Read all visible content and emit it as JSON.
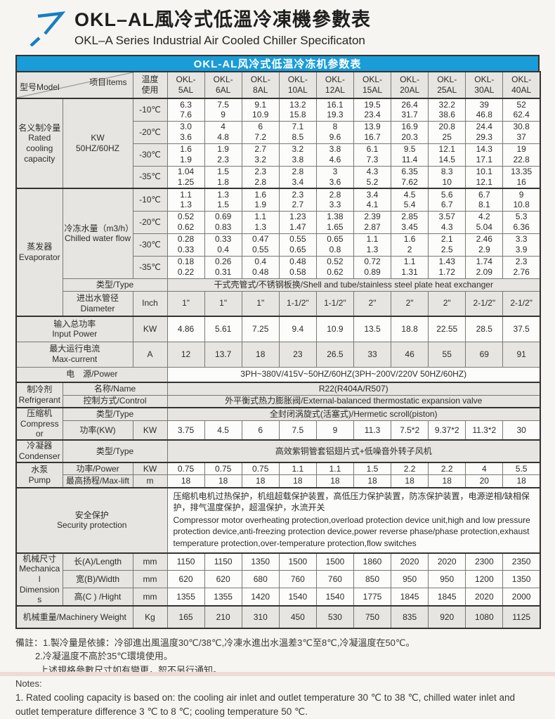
{
  "page": {
    "title_zh": "OKL–AL風冷式低溫冷凍機參數表",
    "title_en": "OKL–A Series Industrial Air Cooled Chiller Specificaton",
    "banner": "OKL-AL风冷式低温冷冻机参数表",
    "accent_blue": "#199cd8"
  },
  "table": {
    "corner": {
      "model": "型号Model",
      "items": "项目Items"
    },
    "temp_header": [
      "温度",
      "使用"
    ],
    "models": [
      "OKL-5AL",
      "OKL-6AL",
      "OKL-8AL",
      "OKL-10AL",
      "OKL-12AL",
      "OKL-15AL",
      "OKL-20AL",
      "OKL-25AL",
      "OKL-30AL",
      "OKL-40AL"
    ],
    "cooling_capacity": {
      "label": [
        "名义制冷量",
        "Rated",
        "cooling",
        "capacity"
      ],
      "unit": [
        "KW",
        "50HZ/60HZ"
      ],
      "rows": [
        {
          "temp": "-10℃",
          "values": [
            [
              "6.3",
              "7.6"
            ],
            [
              "7.5",
              "9"
            ],
            [
              "9.1",
              "10.9"
            ],
            [
              "13.2",
              "15.8"
            ],
            [
              "16.1",
              "19.3"
            ],
            [
              "19.5",
              "23.4"
            ],
            [
              "26.4",
              "31.7"
            ],
            [
              "32.2",
              "38.6"
            ],
            [
              "39",
              "46.8"
            ],
            [
              "52",
              "62.4"
            ]
          ]
        },
        {
          "temp": "-20℃",
          "values": [
            [
              "3.0",
              "3.6"
            ],
            [
              "4",
              "4.8"
            ],
            [
              "6",
              "7.2"
            ],
            [
              "7.1",
              "8.5"
            ],
            [
              "8",
              "9.6"
            ],
            [
              "13.9",
              "16.7"
            ],
            [
              "16.9",
              "20.3"
            ],
            [
              "20.8",
              "25"
            ],
            [
              "24.4",
              "29.3"
            ],
            [
              "30.8",
              "37"
            ]
          ]
        },
        {
          "temp": "-30℃",
          "values": [
            [
              "1.6",
              "1.9"
            ],
            [
              "1.9",
              "2.3"
            ],
            [
              "2.7",
              "3.2"
            ],
            [
              "3.2",
              "3.8"
            ],
            [
              "3.8",
              "4.6"
            ],
            [
              "6.1",
              "7.3"
            ],
            [
              "9.5",
              "11.4"
            ],
            [
              "12.1",
              "14.5"
            ],
            [
              "14.3",
              "17.1"
            ],
            [
              "19",
              "22.8"
            ]
          ]
        },
        {
          "temp": "-35℃",
          "values": [
            [
              "1.04",
              "1.25"
            ],
            [
              "1.5",
              "1.8"
            ],
            [
              "2.3",
              "2.8"
            ],
            [
              "2.8",
              "3.4"
            ],
            [
              "3",
              "3.6"
            ],
            [
              "4.3",
              "5.2"
            ],
            [
              "6.35",
              "7.62"
            ],
            [
              "8.3",
              "10"
            ],
            [
              "10.1",
              "12.1"
            ],
            [
              "13.35",
              "16"
            ]
          ]
        }
      ]
    },
    "evaporator": {
      "label": [
        "蒸发器",
        "Evaporator"
      ],
      "flow_label": [
        "冷冻水量（m3/h）",
        "Chilled water flow"
      ],
      "rows": [
        {
          "temp": "-10℃",
          "values": [
            [
              "1.1",
              "1.3"
            ],
            [
              "1.3",
              "1.5"
            ],
            [
              "1.6",
              "1.9"
            ],
            [
              "2.3",
              "2.7"
            ],
            [
              "2.8",
              "3.3"
            ],
            [
              "3.4",
              "4.1"
            ],
            [
              "4.5",
              "5.4"
            ],
            [
              "5.6",
              "6.7"
            ],
            [
              "6.7",
              "8.1"
            ],
            [
              "9",
              "10.8"
            ]
          ]
        },
        {
          "temp": "-20℃",
          "values": [
            [
              "0.52",
              "0.62"
            ],
            [
              "0.69",
              "0.83"
            ],
            [
              "1.1",
              "1.3"
            ],
            [
              "1.23",
              "1.47"
            ],
            [
              "1.38",
              "1.65"
            ],
            [
              "2.39",
              "2.87"
            ],
            [
              "2.85",
              "3.45"
            ],
            [
              "3.57",
              "4.3"
            ],
            [
              "4.2",
              "5.04"
            ],
            [
              "5.3",
              "6.36"
            ]
          ]
        },
        {
          "temp": "-30℃",
          "values": [
            [
              "0.28",
              "0.33"
            ],
            [
              "0.33",
              "0.4"
            ],
            [
              "0.47",
              "0.55"
            ],
            [
              "0.55",
              "0.65"
            ],
            [
              "0.65",
              "0.8"
            ],
            [
              "1.1",
              "1.3"
            ],
            [
              "1.6",
              "2"
            ],
            [
              "2.1",
              "2.5"
            ],
            [
              "2.46",
              "2.9"
            ],
            [
              "3.3",
              "3.9"
            ]
          ]
        },
        {
          "temp": "-35℃",
          "values": [
            [
              "0.18",
              "0.22"
            ],
            [
              "0.26",
              "0.31"
            ],
            [
              "0.4",
              "0.48"
            ],
            [
              "0.48",
              "0.58"
            ],
            [
              "0.52",
              "0.62"
            ],
            [
              "0.72",
              "0.89"
            ],
            [
              "1.1",
              "1.31"
            ],
            [
              "1.43",
              "1.72"
            ],
            [
              "1.74",
              "2.09"
            ],
            [
              "2.3",
              "2.76"
            ]
          ]
        }
      ],
      "type_label": "类型/Type",
      "type_value": "干式壳管式/不锈钢板换/Shell and tube/stainless steel plate heat exchanger",
      "diameter_label": [
        "进出水管径",
        "Diameter"
      ],
      "diameter_unit": "Inch",
      "diameter_values": [
        "1\"",
        "1\"",
        "1\"",
        "1-1/2\"",
        "1-1/2\"",
        "2\"",
        "2\"",
        "2\"",
        "2-1/2\"",
        "2-1/2\""
      ]
    },
    "input_power": {
      "label": [
        "输入总功率",
        "Input Power"
      ],
      "unit": "KW",
      "values": [
        "4.86",
        "5.61",
        "7.25",
        "9.4",
        "10.9",
        "13.5",
        "18.8",
        "22.55",
        "28.5",
        "37.5"
      ]
    },
    "max_current": {
      "label": [
        "最大运行电流",
        "Max-current"
      ],
      "unit": "A",
      "values": [
        "12",
        "13.7",
        "18",
        "23",
        "26.5",
        "33",
        "46",
        "55",
        "69",
        "91"
      ]
    },
    "power_supply": {
      "label": "电　源/Power",
      "value": "3PH~380V/415V~50HZ/60HZ(3PH~200V/220V  50HZ/60HZ)"
    },
    "refrigerant": {
      "label": [
        "制冷剂",
        "Refrigerant"
      ],
      "name_label": "名称/Name",
      "name_value": "R22(R404A/R507)",
      "control_label": "控制方式/Control",
      "control_value": "外平衡式热力膨胀阀/External-balanced thermostatic expansion valve"
    },
    "compressor": {
      "label": [
        "压缩机",
        "Compressor"
      ],
      "type_label": "类型/Type",
      "type_value": "全封闭涡旋式(活塞式)/Hermetic scroll(piston)",
      "power_label": "功率(KW)",
      "power_unit": "KW",
      "power_values": [
        "3.75",
        "4.5",
        "6",
        "7.5",
        "9",
        "11.3",
        "7.5*2",
        "9.37*2",
        "11.3*2",
        "30"
      ]
    },
    "condenser": {
      "label": [
        "冷凝器",
        "Condenser"
      ],
      "type_label": "类型/Type",
      "type_value": "高效紫铜管套铝翅片式+低噪音外转子风机"
    },
    "pump": {
      "label": [
        "水泵",
        "Pump"
      ],
      "power_label": "功率/Power",
      "power_unit": "KW",
      "power_values": [
        "0.75",
        "0.75",
        "0.75",
        "1.1",
        "1.1",
        "1.5",
        "2.2",
        "2.2",
        "4",
        "5.5"
      ],
      "lift_label": "最高扬程/Max-lift",
      "lift_unit": "m",
      "lift_values": [
        "18",
        "18",
        "18",
        "18",
        "18",
        "18",
        "18",
        "18",
        "20",
        "18"
      ]
    },
    "security": {
      "label": [
        "安全保护",
        "Security protection"
      ],
      "text_zh": "压缩机电机过热保护，机组超载保护装置，高低压力保护装置，防冻保护装置，电源逆相/缺相保护，排气温度保护，超温保护，水流开关",
      "text_en": " Compressor motor overheating protection,overload protection device unit,high and low pressure protection device,anti-freezing protection device,power reverse phase/phase protection,exhaust temperature protection,over-temperature protection,flow switches"
    },
    "dimensions": {
      "label": [
        "机械尺寸",
        "Mechanical",
        "Dimensions"
      ],
      "rows": [
        {
          "label": "长(A)/Length",
          "unit": "mm",
          "values": [
            "1150",
            "1150",
            "1350",
            "1500",
            "1500",
            "1860",
            "2020",
            "2020",
            "2300",
            "2350"
          ]
        },
        {
          "label": "宽(B)/Width",
          "unit": "mm",
          "values": [
            "620",
            "620",
            "680",
            "760",
            "760",
            "850",
            "950",
            "950",
            "1200",
            "1350"
          ]
        },
        {
          "label": "高(C ) /Hight",
          "unit": "mm",
          "values": [
            "1355",
            "1355",
            "1420",
            "1540",
            "1540",
            "1775",
            "1845",
            "1845",
            "2020",
            "2000"
          ]
        }
      ]
    },
    "weight": {
      "label": "机械重量/Machinery Weight",
      "unit": "Kg",
      "values": [
        "165",
        "210",
        "310",
        "450",
        "530",
        "750",
        "835",
        "920",
        "1080",
        "1125"
      ]
    }
  },
  "notes": {
    "zh1": "備註：1.製冷量是依據：冷卻進出風溫度30℃/38℃,冷凍水進出水溫差3℃至8℃,冷凝溫度在50℃。",
    "zh2": "2.冷凝溫度不高於35℃環境使用。",
    "zh3": "上述規格參數尺寸如有變更，恕不另行通知。",
    "en_head": "Notes:",
    "en1": "1. Rated cooling capacity is based on: the cooling air inlet and outlet temperature 30 ℃ to 38 ℃, chilled water inlet and outlet temperature difference 3 ℃ to 8 ℃; cooling temperature 50 ℃."
  }
}
